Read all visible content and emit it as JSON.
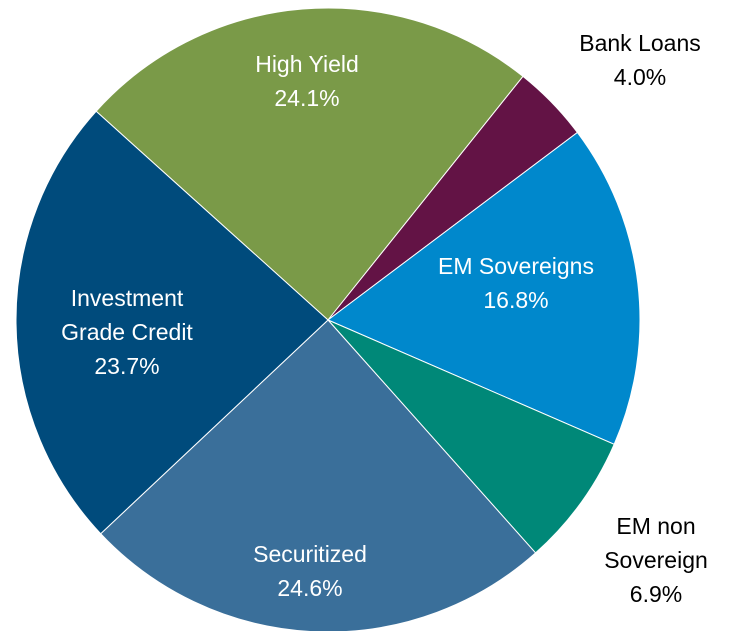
{
  "chart_data": {
    "type": "pie",
    "categories": [
      "High Yield",
      "Bank Loans",
      "EM Sovereigns",
      "EM non Sovereign",
      "Securitized",
      "Investment Grade Credit"
    ],
    "values": [
      24.1,
      4.0,
      16.8,
      6.9,
      24.6,
      23.7
    ],
    "value_labels": [
      "24.1%",
      "4.0%",
      "16.8%",
      "6.9%",
      "24.6%",
      "23.7%"
    ],
    "colors": [
      "#7a9a48",
      "#631345",
      "#0088cc",
      "#008878",
      "#3a6f9a",
      "#004b7c"
    ]
  }
}
